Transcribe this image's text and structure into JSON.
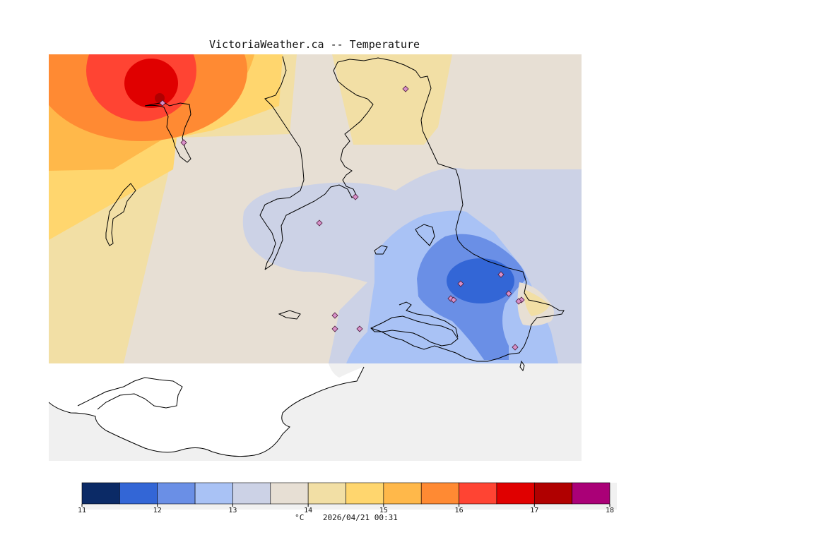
{
  "header": {
    "title": "VictoriaWeather.ca -- Temperature"
  },
  "footer": {
    "unit": "°C",
    "timestamp": "2026/04/21 00:31"
  },
  "legend": {
    "ticks": [
      "11",
      "12",
      "13",
      "14",
      "15",
      "16",
      "17",
      "18"
    ],
    "bins": [
      {
        "from": 11.0,
        "to": 11.5,
        "color": "#0b2a66"
      },
      {
        "from": 11.5,
        "to": 12.0,
        "color": "#3366d6"
      },
      {
        "from": 12.0,
        "to": 12.5,
        "color": "#6a8fe6"
      },
      {
        "from": 12.5,
        "to": 13.0,
        "color": "#a9c2f5"
      },
      {
        "from": 13.0,
        "to": 13.5,
        "color": "#ccd2e6"
      },
      {
        "from": 13.5,
        "to": 14.0,
        "color": "#e7dfd4"
      },
      {
        "from": 14.0,
        "to": 14.5,
        "color": "#f2dfa5"
      },
      {
        "from": 14.5,
        "to": 15.0,
        "color": "#ffd66e"
      },
      {
        "from": 15.0,
        "to": 15.5,
        "color": "#ffb84a"
      },
      {
        "from": 15.5,
        "to": 16.0,
        "color": "#ff8a33"
      },
      {
        "from": 16.0,
        "to": 16.5,
        "color": "#ff4433"
      },
      {
        "from": 16.5,
        "to": 17.0,
        "color": "#e00000"
      },
      {
        "from": 17.0,
        "to": 17.5,
        "color": "#b00000"
      },
      {
        "from": 17.5,
        "to": 18.0,
        "color": "#aa0077"
      }
    ]
  },
  "map": {
    "background_color": "#f0f0f0",
    "stations_count": 16
  }
}
